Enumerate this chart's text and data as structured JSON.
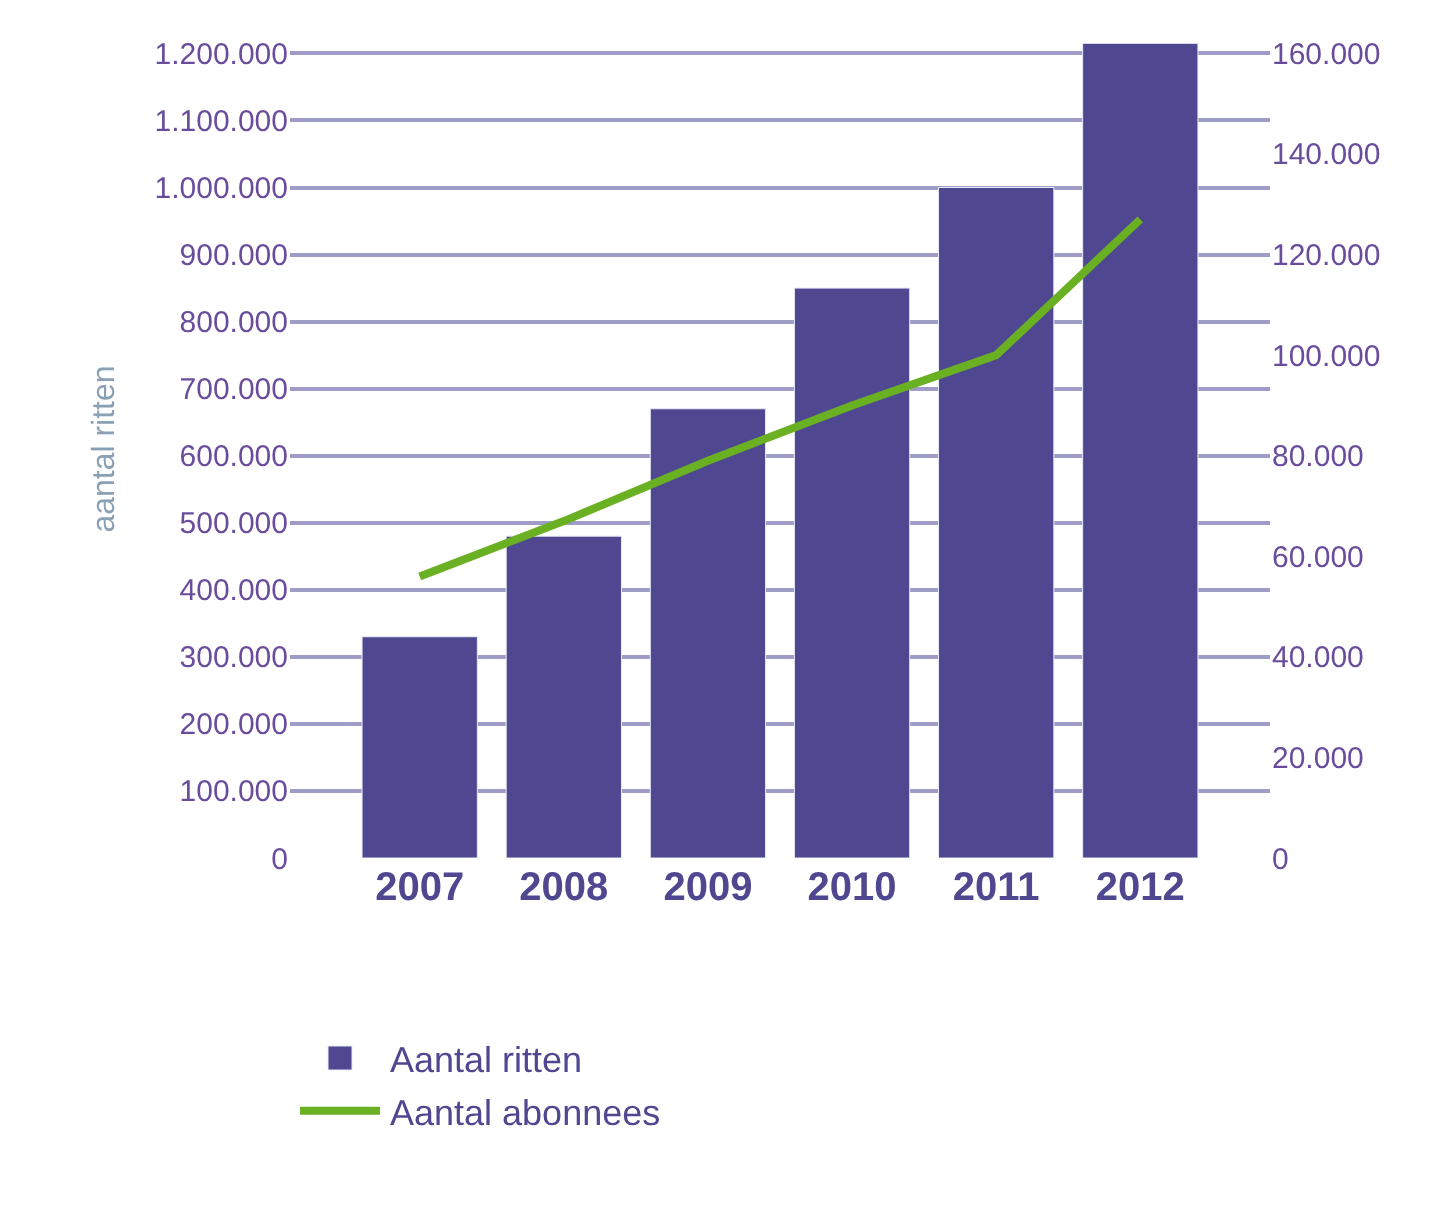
{
  "chart_data": {
    "type": "bar",
    "ylabel": "aantal ritten",
    "categories": [
      "2007",
      "2008",
      "2009",
      "2010",
      "2011",
      "2012"
    ],
    "series": [
      {
        "name": "Aantal ritten",
        "color": "#4f4891",
        "values": [
          330000,
          480000,
          670000,
          850000,
          1000000,
          1215000
        ]
      },
      {
        "name": "Aantal abonnees",
        "type": "line",
        "axis": "y2",
        "color": "#6ab023",
        "values": [
          56000,
          67000,
          79000,
          90000,
          100000,
          127000
        ]
      }
    ],
    "ylim": [
      0,
      1220000
    ],
    "yticks": [
      0,
      {
        "value": 100000,
        "label": "100.000"
      },
      {
        "value": 200000,
        "label": "200.000"
      },
      {
        "value": 300000,
        "label": "300.000"
      },
      {
        "value": 400000,
        "label": "400.000"
      },
      {
        "value": 500000,
        "label": "500.000"
      },
      {
        "value": 600000,
        "label": "600.000"
      },
      {
        "value": 700000,
        "label": "700.000"
      },
      {
        "value": 800000,
        "label": "800.000"
      },
      {
        "value": 900000,
        "label": "900.000"
      },
      {
        "value": 1000000,
        "label": "1.000.000"
      },
      {
        "value": 1100000,
        "label": "1.100.000"
      },
      {
        "value": 1200000,
        "label": "1.200.000"
      }
    ],
    "y2lim": [
      0,
      162667
    ],
    "y2ticks": [
      0,
      {
        "value": 20000,
        "label": "20.000"
      },
      {
        "value": 40000,
        "label": "40.000"
      },
      {
        "value": 60000,
        "label": "60.000"
      },
      {
        "value": 80000,
        "label": "80.000"
      },
      {
        "value": 100000,
        "label": "100.000"
      },
      {
        "value": 120000,
        "label": "120.000"
      },
      {
        "value": 140000,
        "label": "140.000"
      },
      {
        "value": 160000,
        "label": "160.000"
      }
    ],
    "grid": "y",
    "legend": "bottom",
    "marker": "none"
  }
}
